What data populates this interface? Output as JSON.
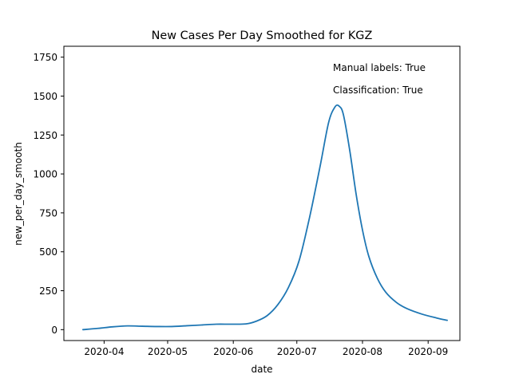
{
  "chart_data": {
    "type": "line",
    "title": "New Cases Per Day Smoothed for KGZ",
    "xlabel": "date",
    "ylabel": "new_per_day_smooth",
    "xlim": [
      "2020-03-13",
      "2020-09-16"
    ],
    "ylim": [
      -70,
      1820
    ],
    "x_ticks": [
      "2020-04-01",
      "2020-05-01",
      "2020-06-01",
      "2020-07-01",
      "2020-08-01",
      "2020-09-01"
    ],
    "x_tick_labels": [
      "2020-04",
      "2020-05",
      "2020-06",
      "2020-07",
      "2020-08",
      "2020-09"
    ],
    "y_ticks": [
      0,
      250,
      500,
      750,
      1000,
      1250,
      1500,
      1750
    ],
    "y_tick_labels": [
      "0",
      "250",
      "500",
      "750",
      "1000",
      "1250",
      "1500",
      "1750"
    ],
    "grid": false,
    "line_color": "#1f77b4",
    "annotations": [
      "Manual labels: True",
      "Classification: True"
    ],
    "series": [
      {
        "x": [
          "2020-03-22",
          "2020-03-29",
          "2020-04-05",
          "2020-04-12",
          "2020-04-19",
          "2020-04-26",
          "2020-05-03",
          "2020-05-10",
          "2020-05-17",
          "2020-05-24",
          "2020-05-31",
          "2020-06-07",
          "2020-06-12",
          "2020-06-17",
          "2020-06-22",
          "2020-06-27",
          "2020-07-02",
          "2020-07-07",
          "2020-07-12",
          "2020-07-16",
          "2020-07-19",
          "2020-07-21",
          "2020-07-23",
          "2020-07-26",
          "2020-07-29",
          "2020-08-01",
          "2020-08-04",
          "2020-08-08",
          "2020-08-12",
          "2020-08-17",
          "2020-08-22",
          "2020-08-29",
          "2020-09-05",
          "2020-09-10"
        ],
        "values": [
          0,
          8,
          18,
          24,
          22,
          20,
          20,
          25,
          30,
          35,
          35,
          37,
          55,
          90,
          160,
          270,
          440,
          720,
          1050,
          1330,
          1430,
          1435,
          1380,
          1150,
          870,
          640,
          470,
          330,
          240,
          175,
          135,
          100,
          75,
          60
        ]
      }
    ]
  }
}
